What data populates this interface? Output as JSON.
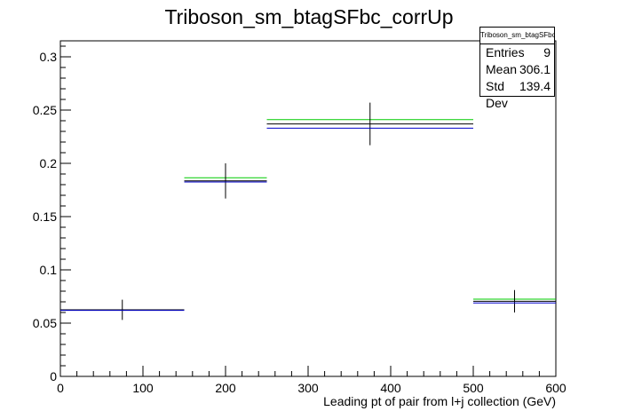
{
  "chart_data": {
    "type": "histogram",
    "title": "Triboson_sm_btagSFbc_corrUp",
    "xlabel": "Leading pt of pair from l+j collection (GeV)",
    "ylabel": "",
    "xlim": [
      0,
      600
    ],
    "ylim": [
      0,
      0.315
    ],
    "x_ticks": [
      0,
      100,
      200,
      300,
      400,
      500,
      600
    ],
    "y_ticks": [
      0,
      0.05,
      0.1,
      0.15,
      0.2,
      0.25,
      0.3
    ],
    "y_tick_labels": [
      "0",
      "0.05",
      "0.1",
      "0.15",
      "0.2",
      "0.25",
      "0.3"
    ],
    "bins": [
      {
        "low": 0,
        "high": 150,
        "center": 75
      },
      {
        "low": 150,
        "high": 250,
        "center": 200
      },
      {
        "low": 250,
        "high": 500,
        "center": 375
      },
      {
        "low": 500,
        "high": 600,
        "center": 550
      }
    ],
    "series": [
      {
        "color": "#00cc00",
        "values": [
          0.0625,
          0.1865,
          0.241,
          0.0725
        ],
        "errors": [
          0,
          0,
          0,
          0
        ]
      },
      {
        "color": "#000000",
        "values": [
          0.0625,
          0.1835,
          0.237,
          0.0705
        ],
        "errors": [
          0.0095,
          0.0165,
          0.02,
          0.0105
        ]
      },
      {
        "color": "#0000cc",
        "values": [
          0.062,
          0.1825,
          0.233,
          0.069
        ],
        "errors": [
          0,
          0,
          0,
          0
        ]
      }
    ],
    "grid": false,
    "stats": {
      "title": "Triboson_sm_btagSFbc_corrUp",
      "rows": [
        {
          "label": "Entries",
          "value": "9"
        },
        {
          "label": "Mean",
          "value": "306.1"
        },
        {
          "label": "Std Dev",
          "value": "139.4"
        }
      ]
    }
  }
}
